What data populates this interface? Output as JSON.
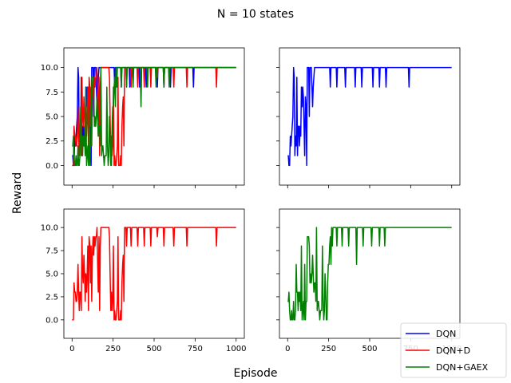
{
  "figure": {
    "suptitle": "N = 10 states",
    "xlabel": "Episode",
    "ylabel": "Reward"
  },
  "legend": {
    "placement": "bottom-right",
    "entries": [
      {
        "label": "DQN",
        "color": "#0000ff"
      },
      {
        "label": "DQN+D",
        "color": "#ff0000"
      },
      {
        "label": "DQN+GAEX",
        "color": "#008000"
      }
    ]
  },
  "chart_data": {
    "type": "line",
    "title": "N = 10 states",
    "xlabel": "Episode",
    "ylabel": "Reward",
    "xlim": [
      -50,
      1050
    ],
    "ylim": [
      -2,
      12
    ],
    "xticks": [
      0,
      250,
      500,
      750,
      1000
    ],
    "yticks": [
      0.0,
      2.5,
      5.0,
      7.5,
      10.0
    ],
    "ytick_labels": [
      "0.0",
      "2.5",
      "5.0",
      "7.5",
      "10.0"
    ],
    "grid": false,
    "episodes": 1000,
    "series": [
      {
        "name": "DQN",
        "color": "#0000ff",
        "converged_value": 10,
        "description_points": [
          {
            "x": 0,
            "y": 1
          },
          {
            "x": 10,
            "y": 0
          },
          {
            "x": 20,
            "y": 3
          },
          {
            "x": 40,
            "y": 2
          },
          {
            "x": 60,
            "y": 1
          },
          {
            "x": 80,
            "y": 5
          },
          {
            "x": 100,
            "y": 7
          },
          {
            "x": 120,
            "y": 9
          },
          {
            "x": 150,
            "y": 8
          },
          {
            "x": 180,
            "y": 10
          },
          {
            "x": 200,
            "y": 10
          },
          {
            "x": 250,
            "y": 10
          },
          {
            "x": 300,
            "y": 10
          },
          {
            "x": 400,
            "y": 10
          },
          {
            "x": 500,
            "y": 10
          },
          {
            "x": 600,
            "y": 10
          },
          {
            "x": 1000,
            "y": 10
          }
        ],
        "dips": [
          {
            "x": 260,
            "y": 8
          },
          {
            "x": 300,
            "y": 8
          },
          {
            "x": 350,
            "y": 8
          },
          {
            "x": 410,
            "y": 8
          },
          {
            "x": 450,
            "y": 8
          },
          {
            "x": 520,
            "y": 8
          },
          {
            "x": 560,
            "y": 8
          },
          {
            "x": 600,
            "y": 8
          },
          {
            "x": 740,
            "y": 8
          }
        ]
      },
      {
        "name": "DQN+D",
        "color": "#ff0000",
        "converged_value": 10,
        "description_points": [
          {
            "x": 0,
            "y": 0
          },
          {
            "x": 20,
            "y": 2
          },
          {
            "x": 50,
            "y": 3
          },
          {
            "x": 80,
            "y": 6
          },
          {
            "x": 120,
            "y": 7
          },
          {
            "x": 150,
            "y": 8
          },
          {
            "x": 180,
            "y": 10
          },
          {
            "x": 220,
            "y": 10
          },
          {
            "x": 250,
            "y": 0
          },
          {
            "x": 300,
            "y": 0
          },
          {
            "x": 320,
            "y": 10
          },
          {
            "x": 400,
            "y": 10
          },
          {
            "x": 500,
            "y": 10
          },
          {
            "x": 1000,
            "y": 10
          }
        ],
        "dips": [
          {
            "x": 330,
            "y": 8
          },
          {
            "x": 360,
            "y": 8
          },
          {
            "x": 400,
            "y": 8
          },
          {
            "x": 440,
            "y": 8
          },
          {
            "x": 480,
            "y": 8
          },
          {
            "x": 520,
            "y": 9
          },
          {
            "x": 560,
            "y": 8
          },
          {
            "x": 620,
            "y": 8
          },
          {
            "x": 700,
            "y": 8
          },
          {
            "x": 880,
            "y": 8
          }
        ]
      },
      {
        "name": "DQN+GAEX",
        "color": "#008000",
        "converged_value": 10,
        "description_points": [
          {
            "x": 0,
            "y": 0
          },
          {
            "x": 5,
            "y": 4
          },
          {
            "x": 20,
            "y": 0
          },
          {
            "x": 50,
            "y": 1
          },
          {
            "x": 80,
            "y": 3
          },
          {
            "x": 100,
            "y": 0
          },
          {
            "x": 150,
            "y": 6
          },
          {
            "x": 200,
            "y": 0
          },
          {
            "x": 240,
            "y": 0
          },
          {
            "x": 250,
            "y": 8
          },
          {
            "x": 270,
            "y": 10
          },
          {
            "x": 300,
            "y": 10
          },
          {
            "x": 400,
            "y": 10
          },
          {
            "x": 500,
            "y": 10
          },
          {
            "x": 1000,
            "y": 10
          }
        ],
        "dips": [
          {
            "x": 270,
            "y": 8
          },
          {
            "x": 300,
            "y": 8
          },
          {
            "x": 330,
            "y": 8
          },
          {
            "x": 370,
            "y": 8
          },
          {
            "x": 420,
            "y": 6
          },
          {
            "x": 460,
            "y": 8
          },
          {
            "x": 510,
            "y": 8
          },
          {
            "x": 560,
            "y": 8
          },
          {
            "x": 590,
            "y": 8
          }
        ]
      }
    ],
    "subplots": [
      {
        "position": "top-left",
        "series": [
          "DQN",
          "DQN+D",
          "DQN+GAEX"
        ],
        "show_yticks": true,
        "show_xticklabels": false
      },
      {
        "position": "top-right",
        "series": [
          "DQN"
        ],
        "show_yticks": false,
        "show_xticklabels": false
      },
      {
        "position": "bottom-left",
        "series": [
          "DQN+D"
        ],
        "show_yticks": true,
        "show_xticklabels": true
      },
      {
        "position": "bottom-right",
        "series": [
          "DQN+GAEX"
        ],
        "show_yticks": false,
        "show_xticklabels": true
      }
    ]
  }
}
